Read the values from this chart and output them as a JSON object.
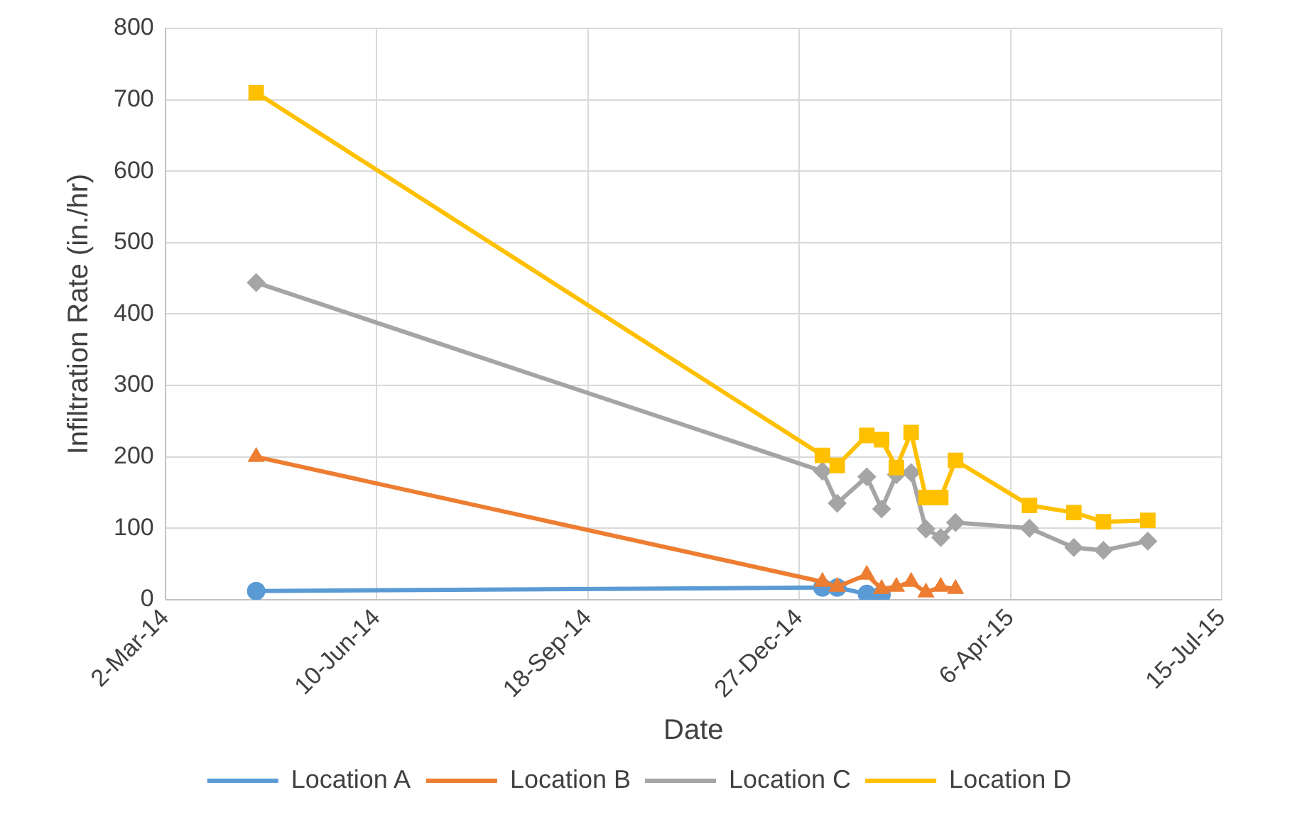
{
  "chart_data": {
    "type": "line",
    "xlabel": "Date",
    "ylabel": "Infiltration Rate (in./hr)",
    "xlim": [
      "2014-03-02",
      "2015-07-15"
    ],
    "xticks": [
      {
        "value": "2014-03-02",
        "label": "2-Mar-14"
      },
      {
        "value": "2014-06-10",
        "label": "10-Jun-14"
      },
      {
        "value": "2014-09-18",
        "label": "18-Sep-14"
      },
      {
        "value": "2014-12-27",
        "label": "27-Dec-14"
      },
      {
        "value": "2015-04-06",
        "label": "6-Apr-15"
      },
      {
        "value": "2015-07-15",
        "label": "15-Jul-15"
      }
    ],
    "ylim": [
      0,
      800
    ],
    "yticks": [
      0,
      100,
      200,
      300,
      400,
      500,
      600,
      700,
      800
    ],
    "grid": true,
    "legend": "bottom",
    "series": [
      {
        "name": "Location A",
        "color": "#5b9bd5",
        "marker": "circle",
        "x": [
          "2014-04-14",
          "2015-01-07",
          "2015-01-14",
          "2015-01-28",
          "2015-02-04"
        ],
        "values": [
          12,
          17,
          17,
          8,
          7
        ]
      },
      {
        "name": "Location B",
        "color": "#ed7d31",
        "marker": "triangle",
        "x": [
          "2014-04-14",
          "2015-01-07",
          "2015-01-14",
          "2015-01-28",
          "2015-02-04",
          "2015-02-11",
          "2015-02-18",
          "2015-02-25",
          "2015-03-04",
          "2015-03-11"
        ],
        "values": [
          200,
          25,
          18,
          35,
          15,
          18,
          25,
          10,
          18,
          15
        ]
      },
      {
        "name": "Location C",
        "color": "#a5a5a5",
        "marker": "diamond",
        "x": [
          "2014-04-14",
          "2015-01-07",
          "2015-01-14",
          "2015-01-28",
          "2015-02-04",
          "2015-02-11",
          "2015-02-18",
          "2015-02-25",
          "2015-03-04",
          "2015-03-11",
          "2015-04-15",
          "2015-05-06",
          "2015-05-20",
          "2015-06-10"
        ],
        "values": [
          444,
          180,
          135,
          172,
          127,
          175,
          178,
          99,
          87,
          108,
          100,
          73,
          69,
          82
        ]
      },
      {
        "name": "Location D",
        "color": "#ffc000",
        "marker": "square",
        "x": [
          "2014-04-14",
          "2015-01-07",
          "2015-01-14",
          "2015-01-28",
          "2015-02-04",
          "2015-02-11",
          "2015-02-18",
          "2015-02-25",
          "2015-03-04",
          "2015-03-11",
          "2015-04-15",
          "2015-05-06",
          "2015-05-20",
          "2015-06-10"
        ],
        "values": [
          710,
          202,
          188,
          230,
          224,
          185,
          234,
          143,
          143,
          195,
          132,
          122,
          109,
          111
        ]
      }
    ]
  }
}
